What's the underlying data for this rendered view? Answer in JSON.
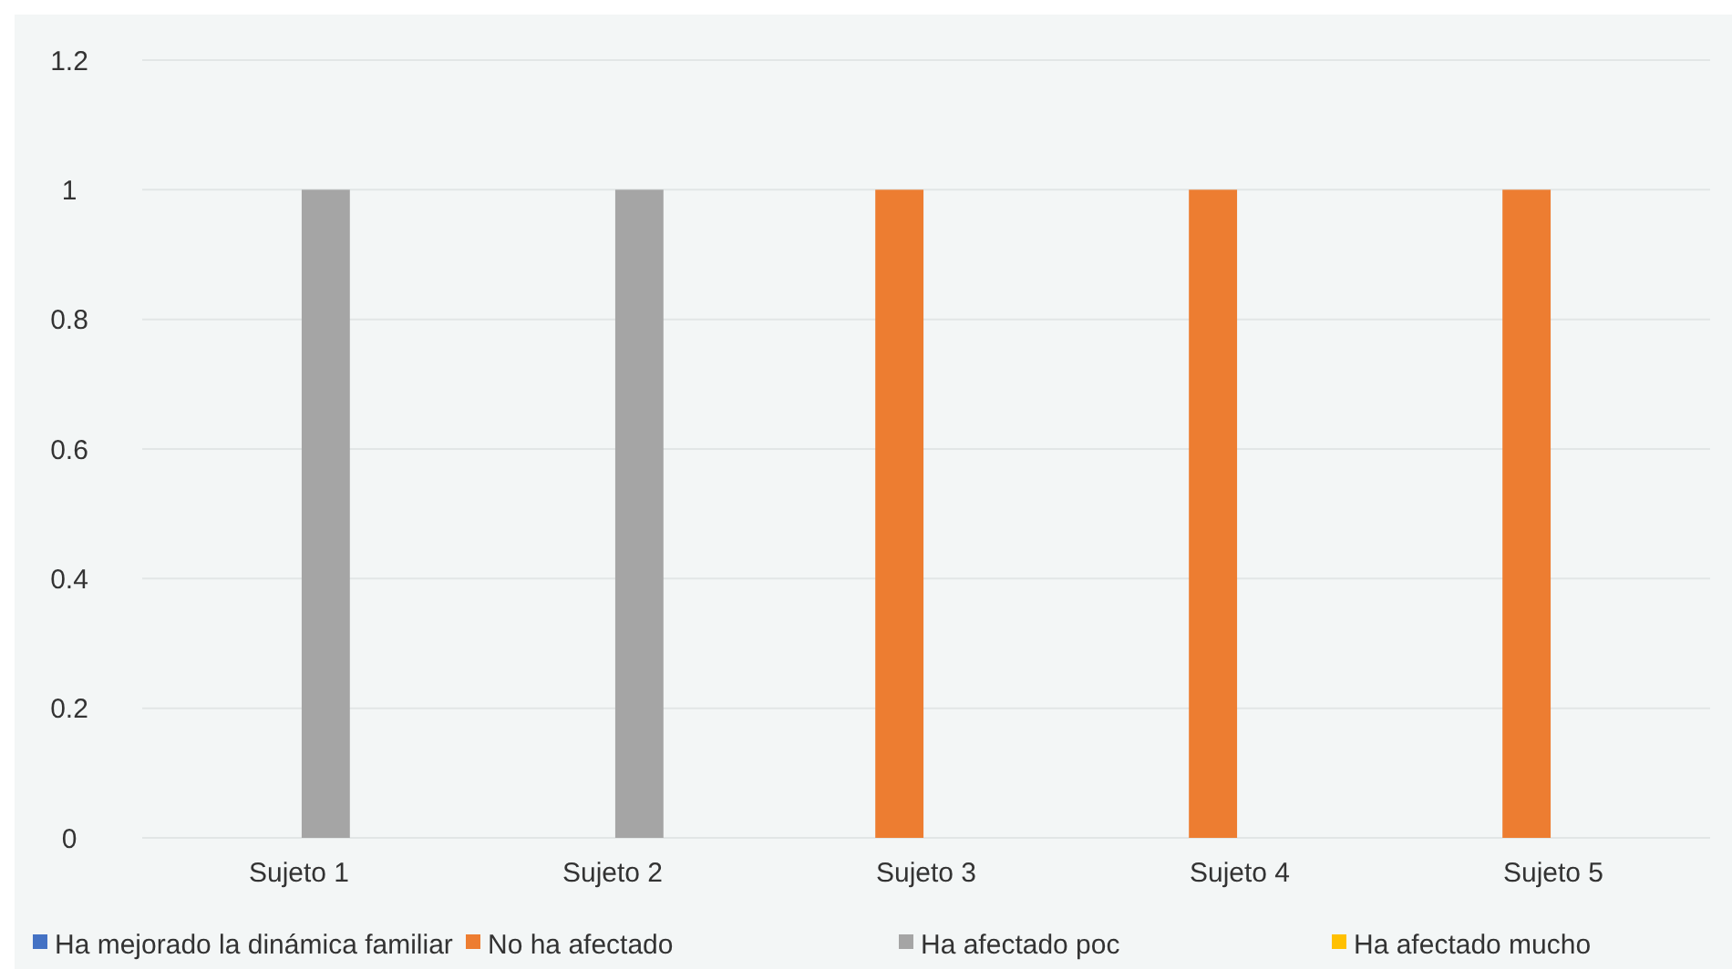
{
  "chart_data": {
    "type": "bar",
    "categories": [
      "Sujeto 1",
      "Sujeto 2",
      "Sujeto 3",
      "Sujeto 4",
      "Sujeto 5"
    ],
    "series": [
      {
        "name": "Ha mejorado la dinámica familiar",
        "color": "#4472c4",
        "values": [
          0,
          0,
          0,
          0,
          0
        ]
      },
      {
        "name": "No ha afectado",
        "color": "#ed7d31",
        "values": [
          0,
          0,
          1,
          1,
          1
        ]
      },
      {
        "name": "Ha afectado poc",
        "color": "#a5a5a5",
        "values": [
          1,
          1,
          0,
          0,
          0
        ]
      },
      {
        "name": "Ha afectado mucho",
        "color": "#ffc000",
        "values": [
          0,
          0,
          0,
          0,
          0
        ]
      }
    ],
    "ylim": [
      0,
      1.2
    ],
    "yticks": [
      0,
      0.2,
      0.4,
      0.6,
      0.8,
      1,
      1.2
    ],
    "grid": "y",
    "legend": "bottom"
  }
}
